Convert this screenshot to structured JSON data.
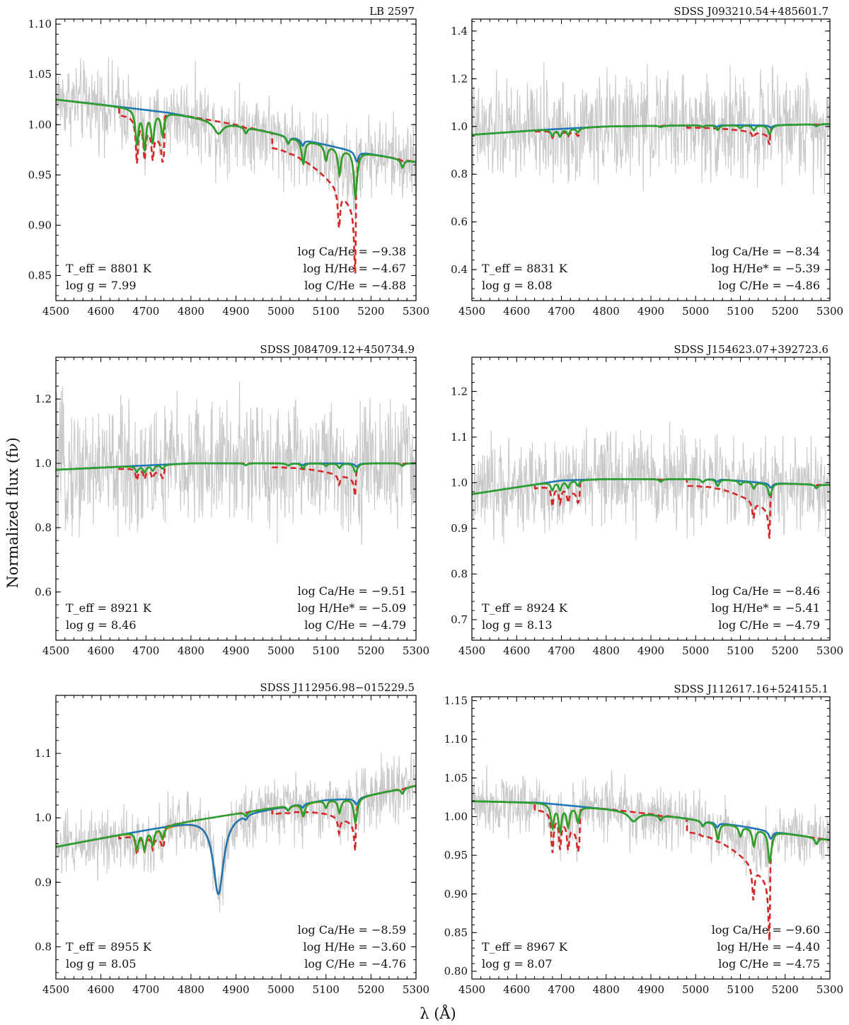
{
  "figure": {
    "ylabel": "Normalized flux (fν)",
    "xlabel": "λ (Å)"
  },
  "chart_data": [
    {
      "type": "line",
      "title": "LB 2597",
      "xlim": [
        4500,
        5300
      ],
      "ylim": [
        0.825,
        1.105
      ],
      "xticks": [
        4500,
        4600,
        4700,
        4800,
        4900,
        5000,
        5100,
        5200,
        5300
      ],
      "yticks": [
        0.85,
        0.9,
        0.95,
        1.0,
        1.05,
        1.1
      ],
      "ytick_labels": [
        "0.85",
        "0.90",
        "0.95",
        "1.00",
        "1.05",
        "1.10"
      ],
      "params": {
        "teff": "T_eff = 8801 K",
        "logg": "log g = 7.99",
        "ca": "log Ca/He = −9.38",
        "h": "log H/He = −4.67",
        "c": "log C/He = −4.88"
      },
      "model": {
        "cont": [
          [
            4500,
            1.025
          ],
          [
            4600,
            1.02
          ],
          [
            4750,
            1.012
          ],
          [
            4900,
            1.0
          ],
          [
            5050,
            0.985
          ],
          [
            5150,
            0.975
          ],
          [
            5300,
            0.963
          ]
        ],
        "noise": 0.028,
        "hbeta": 0.012,
        "hwidth": 12,
        "c2": 0.025,
        "c2scale": 1.5,
        "swan": 0.06
      }
    },
    {
      "type": "line",
      "title": "SDSS J093210.54+485601.7",
      "xlim": [
        4500,
        5300
      ],
      "ylim": [
        0.27,
        1.45
      ],
      "xticks": [
        4500,
        4600,
        4700,
        4800,
        4900,
        5000,
        5100,
        5200,
        5300
      ],
      "yticks": [
        0.4,
        0.6,
        0.8,
        1.0,
        1.2,
        1.4
      ],
      "ytick_labels": [
        "0.4",
        "0.6",
        "0.8",
        "1.0",
        "1.2",
        "1.4"
      ],
      "params": {
        "teff": "T_eff = 8831 K",
        "logg": "log g = 8.08",
        "ca": "log Ca/He = −8.34",
        "h": "log H/He* = −5.39",
        "c": "log C/He = −4.86"
      },
      "model": {
        "cont": [
          [
            4500,
            0.965
          ],
          [
            4650,
            0.985
          ],
          [
            4800,
            1.0
          ],
          [
            5000,
            1.005
          ],
          [
            5150,
            1.005
          ],
          [
            5300,
            1.01
          ]
        ],
        "noise": 0.15,
        "hbeta": 0.0,
        "hwidth": 12,
        "c2": 0.03,
        "c2scale": 1.0,
        "swan": 0.04
      }
    },
    {
      "type": "line",
      "title": "SDSS J084709.12+450734.9",
      "xlim": [
        4500,
        5300
      ],
      "ylim": [
        0.45,
        1.33
      ],
      "xticks": [
        4500,
        4600,
        4700,
        4800,
        4900,
        5000,
        5100,
        5200,
        5300
      ],
      "yticks": [
        0.6,
        0.8,
        1.0,
        1.2
      ],
      "ytick_labels": [
        "0.6",
        "0.8",
        "1.0",
        "1.2"
      ],
      "params": {
        "teff": "T_eff = 8921 K",
        "logg": "log g = 8.46",
        "ca": "log Ca/He = −9.51",
        "h": "log H/He* = −5.09",
        "c": "log C/He = −4.79"
      },
      "model": {
        "cont": [
          [
            4500,
            0.98
          ],
          [
            4650,
            0.99
          ],
          [
            4800,
            1.0
          ],
          [
            5300,
            1.0
          ]
        ],
        "noise": 0.14,
        "hbeta": 0.0,
        "hwidth": 12,
        "c2": 0.02,
        "c2scale": 1.0,
        "swan": 0.05
      }
    },
    {
      "type": "line",
      "title": "SDSS J154623.07+392723.6",
      "xlim": [
        4500,
        5300
      ],
      "ylim": [
        0.655,
        1.275
      ],
      "xticks": [
        4500,
        4600,
        4700,
        4800,
        4900,
        5000,
        5100,
        5200,
        5300
      ],
      "yticks": [
        0.7,
        0.8,
        0.9,
        1.0,
        1.1,
        1.2
      ],
      "ytick_labels": [
        "0.7",
        "0.8",
        "0.9",
        "1.0",
        "1.1",
        "1.2"
      ],
      "params": {
        "teff": "T_eff = 8924 K",
        "logg": "log g = 8.13",
        "ca": "log Ca/He = −8.46",
        "h": "log H/He* = −5.41",
        "c": "log C/He = −4.79"
      },
      "model": {
        "cont": [
          [
            4500,
            0.975
          ],
          [
            4600,
            0.99
          ],
          [
            4700,
            1.005
          ],
          [
            4800,
            1.008
          ],
          [
            5050,
            1.008
          ],
          [
            5150,
            1.0
          ],
          [
            5300,
            0.995
          ]
        ],
        "noise": 0.07,
        "hbeta": 0.0,
        "hwidth": 12,
        "c2": 0.02,
        "c2scale": 1.0,
        "swan": 0.06
      }
    },
    {
      "type": "line",
      "title": "SDSS J112956.98−015229.5",
      "xlim": [
        4500,
        5300
      ],
      "ylim": [
        0.75,
        1.19
      ],
      "xticks": [
        4500,
        4600,
        4700,
        4800,
        4900,
        5000,
        5100,
        5200,
        5300
      ],
      "yticks": [
        0.8,
        0.9,
        1.0,
        1.1
      ],
      "ytick_labels": [
        "0.8",
        "0.9",
        "1.0",
        "1.1"
      ],
      "params": {
        "teff": "T_eff = 8955 K",
        "logg": "log g = 8.05",
        "ca": "log Ca/He = −8.59",
        "h": "log H/He = −3.60",
        "c": "log C/He = −4.76"
      },
      "model": {
        "cont": [
          [
            4500,
            0.955
          ],
          [
            4650,
            0.975
          ],
          [
            4800,
            0.995
          ],
          [
            4950,
            1.012
          ],
          [
            5100,
            1.028
          ],
          [
            5160,
            1.03
          ],
          [
            5300,
            1.05
          ]
        ],
        "noise": 0.035,
        "hbeta": 0.12,
        "hwidth": 14,
        "c2": 0.03,
        "c2scale": 1.0,
        "swan": 0.04
      }
    },
    {
      "type": "line",
      "title": "SDSS J112617.16+524155.1",
      "xlim": [
        4500,
        5300
      ],
      "ylim": [
        0.79,
        1.155
      ],
      "xticks": [
        4500,
        4600,
        4700,
        4800,
        4900,
        5000,
        5100,
        5200,
        5300
      ],
      "yticks": [
        0.8,
        0.85,
        0.9,
        0.95,
        1.0,
        1.05,
        1.1,
        1.15
      ],
      "ytick_labels": [
        "0.80",
        "0.85",
        "0.90",
        "0.95",
        "1.00",
        "1.05",
        "1.10",
        "1.15"
      ],
      "params": {
        "teff": "T_eff = 8967 K",
        "logg": "log g = 8.07",
        "ca": "log Ca/He = −9.60",
        "h": "log H/He = −4.40",
        "c": "log C/He = −4.75"
      },
      "model": {
        "cont": [
          [
            4500,
            1.02
          ],
          [
            4650,
            1.018
          ],
          [
            4800,
            1.01
          ],
          [
            4950,
            1.0
          ],
          [
            5100,
            0.988
          ],
          [
            5160,
            0.982
          ],
          [
            5300,
            0.97
          ]
        ],
        "noise": 0.028,
        "hbeta": 0.012,
        "hwidth": 12,
        "c2": 0.025,
        "c2scale": 1.3,
        "swan": 0.07
      }
    }
  ]
}
